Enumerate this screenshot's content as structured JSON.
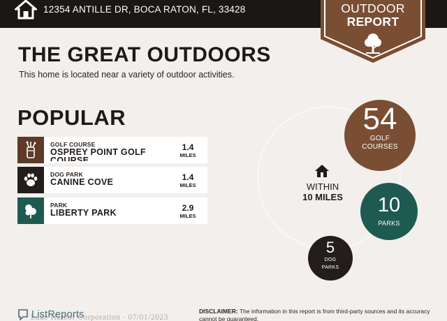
{
  "header": {
    "address": "12354 ANTILLE DR, BOCA RATON, FL, 33428",
    "home_icon": "home-icon",
    "bar_color": "#1b1714"
  },
  "badge": {
    "line1": "OUTDOOR",
    "line2": "REPORT",
    "icon": "tree-icon",
    "color": "#7a4e33"
  },
  "main": {
    "title": "THE GREAT OUTDOORS",
    "subtitle": "This home is located near a variety of outdoor activities."
  },
  "popular": {
    "heading": "POPULAR",
    "items": [
      {
        "category": "GOLF COURSE",
        "name": "OSPREY POINT GOLF COURSE",
        "distance": "1.4",
        "unit": "MILES",
        "icon": "golf-bag-icon",
        "color": "#5e3b27"
      },
      {
        "category": "DOG PARK",
        "name": "CANINE COVE",
        "distance": "1.4",
        "unit": "MILES",
        "icon": "paw-icon",
        "color": "#231e1b"
      },
      {
        "category": "PARK",
        "name": "LIBERTY PARK",
        "distance": "2.9",
        "unit": "MILES",
        "icon": "park-tree-icon",
        "color": "#1e5a52"
      }
    ]
  },
  "summary": {
    "within_line1": "WITHIN",
    "within_line2": "10 MILES",
    "house_icon": "house-icon",
    "golf": {
      "count": "54",
      "label_line1": "GOLF",
      "label_line2": "COURSES",
      "color": "#7a4e33"
    },
    "parks": {
      "count": "10",
      "label": "PARKS",
      "color": "#1e5a52"
    },
    "dog": {
      "count": "5",
      "label_line1": "DOG",
      "label_line2": "PARKS",
      "color": "#231e1b"
    }
  },
  "footer": {
    "logo_text": "ListReports",
    "watermark": "Lake Harbor Corporation · 07/01/2023",
    "disclaimer_label": "DISCLAIMER:",
    "disclaimer_text": "The information in this report is from third-party sources and its accuracy cannot be guaranteed."
  }
}
